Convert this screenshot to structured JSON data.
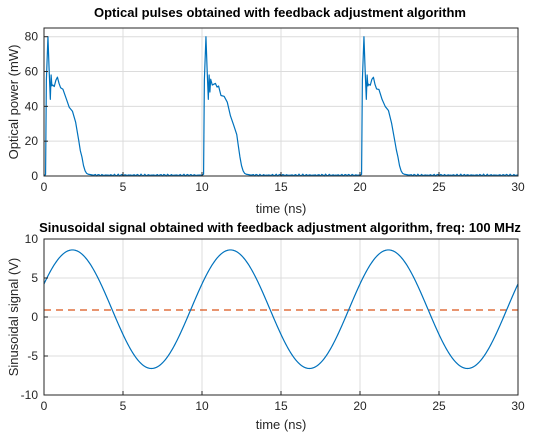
{
  "colors": {
    "primary_series": "#0072bd",
    "reference_line": "#d95319",
    "grid": "#dcdcdc"
  },
  "chart_data": [
    {
      "type": "line",
      "title": "Optical pulses obtained with feedback adjustment algorithm",
      "xlabel": "time (ns)",
      "ylabel": "Optical power (mW)",
      "xlim": [
        0,
        30
      ],
      "ylim": [
        0,
        85
      ],
      "xticks": [
        0,
        5,
        10,
        15,
        20,
        25,
        30
      ],
      "yticks": [
        0,
        20,
        40,
        60,
        80
      ],
      "grid": true,
      "pulse_period_ns": 10,
      "pulse_starts_ns": [
        0.1,
        10.1,
        20.1
      ],
      "pulse_shape": {
        "x_offset_ns": [
          0,
          0.05,
          0.15,
          0.22,
          0.3,
          0.35,
          0.4,
          0.45,
          0.55,
          0.65,
          0.75,
          0.85,
          0.95,
          1.1,
          1.3,
          1.5,
          1.7,
          1.9,
          2.1,
          2.2,
          2.3,
          2.4,
          2.5,
          2.6,
          2.7,
          2.85,
          3.0
        ],
        "power_mW": [
          1,
          55,
          80,
          62,
          44,
          58,
          50,
          54,
          52,
          54,
          55,
          52,
          51,
          48,
          45,
          41,
          36,
          30,
          22,
          16,
          11,
          6,
          3,
          1.5,
          1,
          0.8,
          0.5
        ]
      },
      "baseline_mW": 0.5
    },
    {
      "type": "line",
      "title": "Sinusoidal signal obtained with feedback adjustment algorithm, freq: 100 MHz",
      "xlabel": "time (ns)",
      "ylabel": "Sinusoidal signal (V)",
      "xlim": [
        0,
        30
      ],
      "ylim": [
        -10,
        10
      ],
      "xticks": [
        0,
        5,
        10,
        15,
        20,
        25,
        30
      ],
      "yticks": [
        -10,
        -5,
        0,
        5,
        10
      ],
      "grid": true,
      "frequency_MHz": 100,
      "offset_V": 1,
      "amplitude_V": 7.6,
      "first_maximum_ns": 1.8,
      "reference_level_V": 0.9
    }
  ]
}
